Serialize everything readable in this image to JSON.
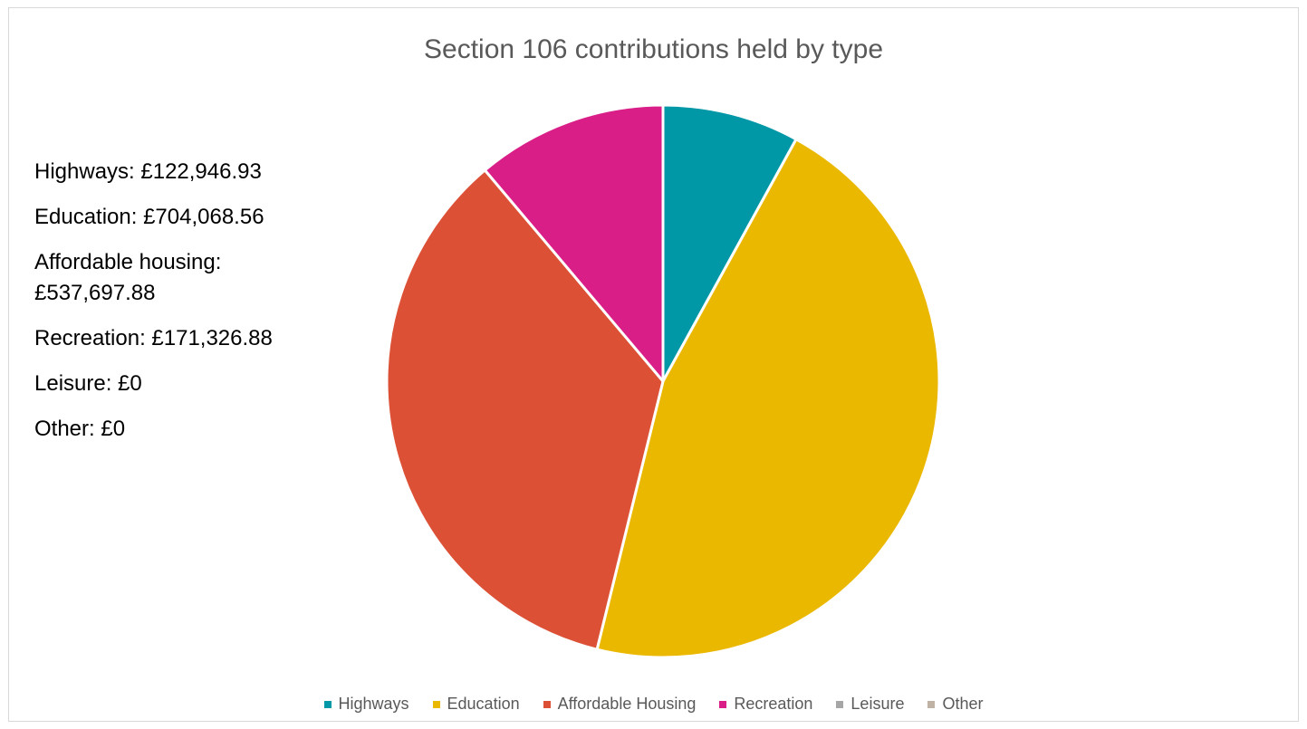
{
  "chart_data": {
    "type": "pie",
    "title": "Section 106 contributions held by type",
    "categories": [
      "Highways",
      "Education",
      "Affordable Housing",
      "Recreation",
      "Leisure",
      "Other"
    ],
    "values": [
      122946.93,
      704068.56,
      537697.88,
      171326.88,
      0,
      0
    ],
    "colors": [
      "#0097A7",
      "#EBB800",
      "#DC5035",
      "#D91E87",
      "#A6A6A6",
      "#BFB3A6"
    ],
    "legend_position": "bottom",
    "annotations": [
      "Highways: £122,946.93",
      "Education: £704,068.56",
      "Affordable housing: £537,697.88",
      "Recreation: £171,326.88",
      "Leisure: £0",
      "Other: £0"
    ]
  }
}
